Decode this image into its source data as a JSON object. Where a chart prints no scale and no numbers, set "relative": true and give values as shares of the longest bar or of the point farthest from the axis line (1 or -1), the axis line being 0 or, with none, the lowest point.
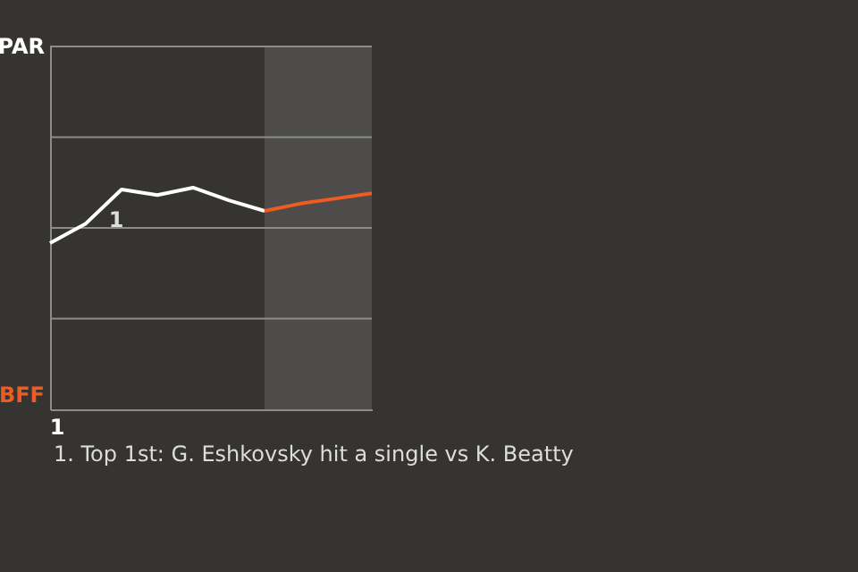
{
  "chart_data": {
    "type": "line",
    "relative": true,
    "categories": [
      null,
      null,
      null,
      null,
      null,
      null,
      null,
      null,
      null,
      null
    ],
    "ref_lines": [
      {
        "axis": "y",
        "value": 0.409,
        "color": "#8c8c8a"
      },
      {
        "axis": "y",
        "value": 0.818,
        "color": "#8c8c8a"
      },
      {
        "axis": "y",
        "value": 1.228,
        "color": "#8c8c8a"
      },
      {
        "axis": "y",
        "value": 1.637,
        "color": "#8c8c8a"
      }
    ],
    "marker": "none",
    "line_style": "solid",
    "series": [
      {
        "color": "#ffffff",
        "values": [
          0.75,
          0.838,
          0.992,
          0.967,
          1,
          0.943,
          0.895,
          null,
          null,
          null
        ]
      },
      {
        "color": "#f05a23",
        "values": [
          null,
          null,
          null,
          null,
          null,
          null,
          0.895,
          0.928,
          0.951,
          0.975
        ]
      }
    ],
    "annotations": [
      "PAR",
      "BFF",
      "1",
      "1",
      "1. Top 1st: G. Eshkovsky hit a single vs K. Beatty"
    ]
  }
}
